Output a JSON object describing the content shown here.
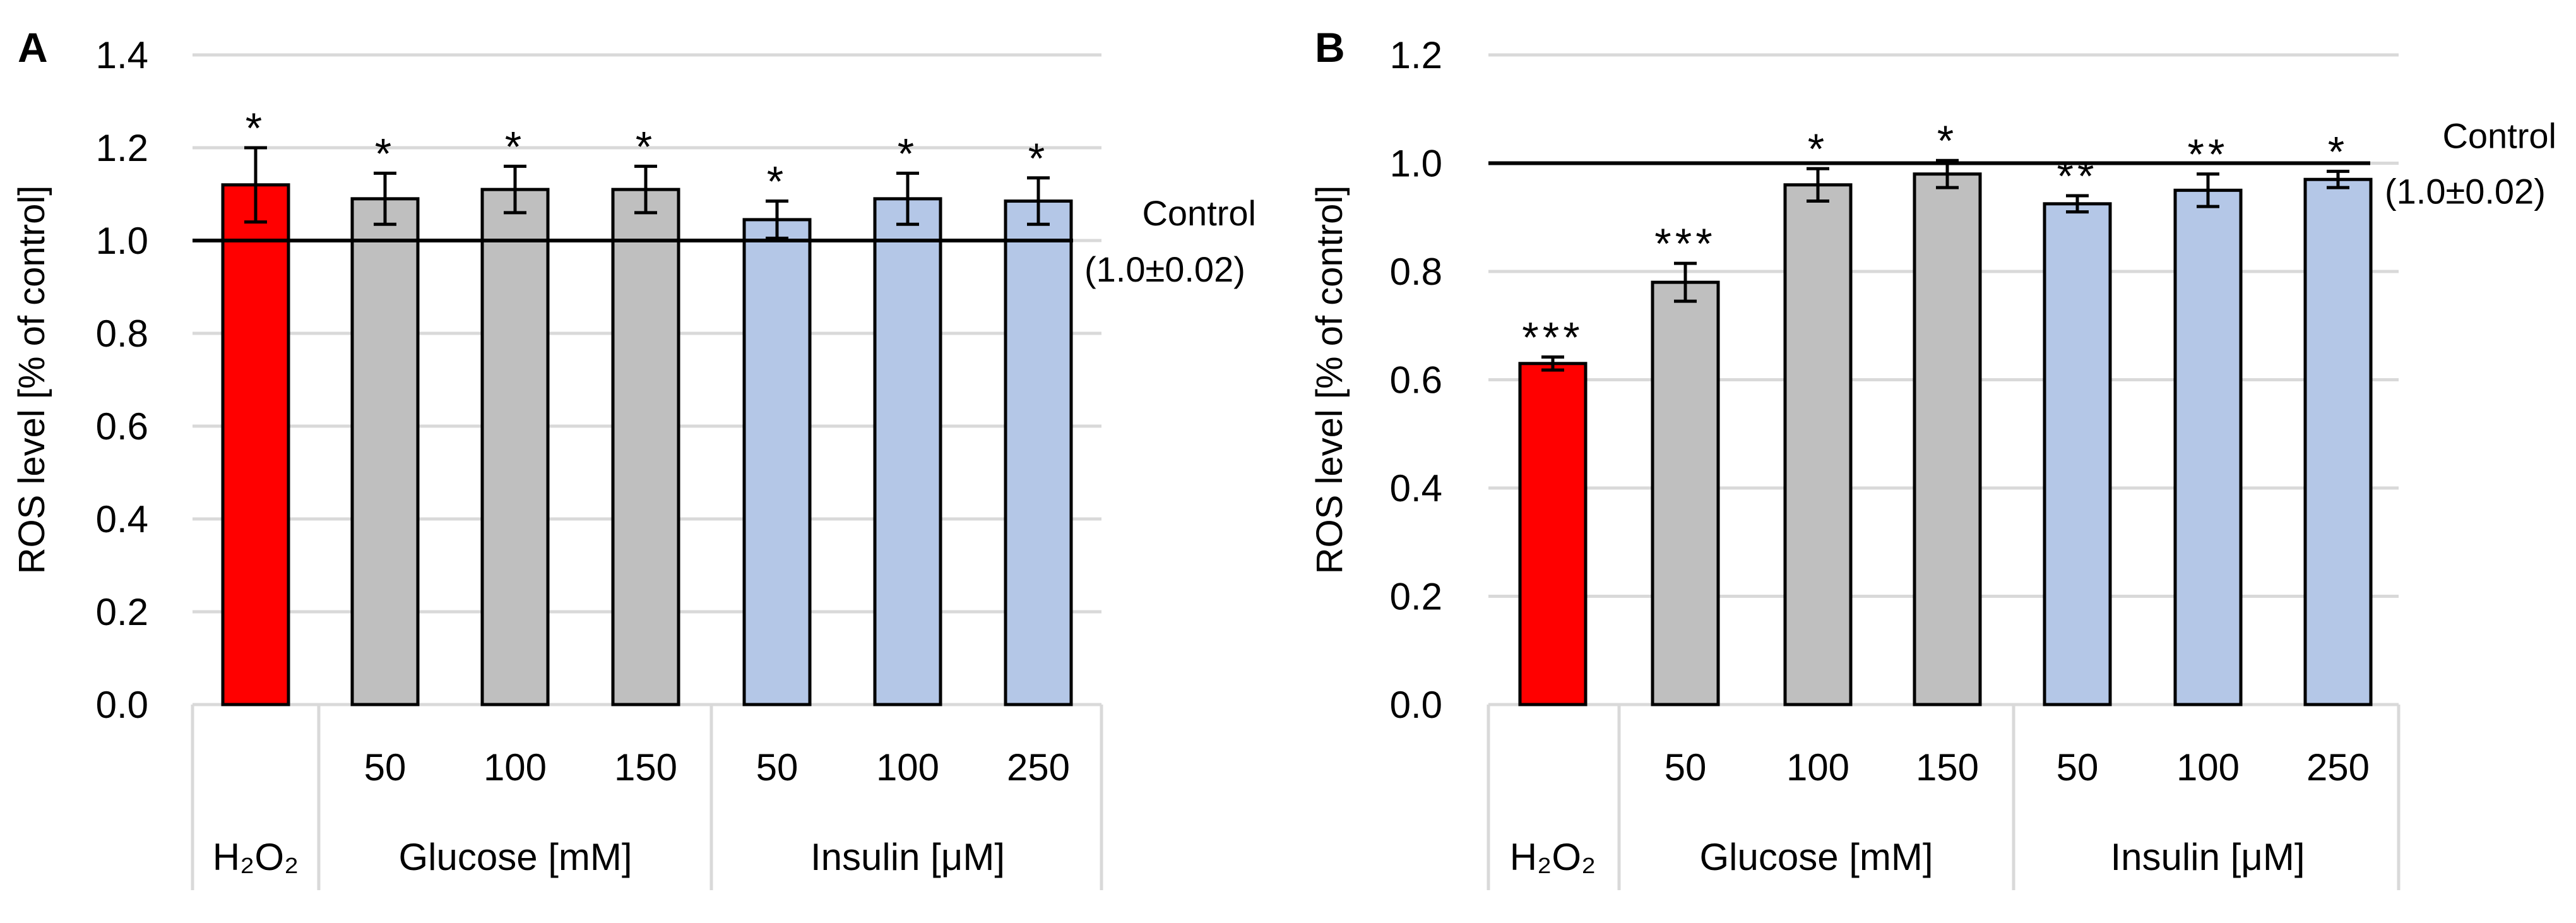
{
  "chart_data": [
    {
      "panel_label": "A",
      "type": "bar",
      "ylabel": "ROS level [% of control]",
      "ylim": [
        0,
        1.4
      ],
      "yticks": [
        "0.0",
        "0.2",
        "0.4",
        "0.6",
        "0.8",
        "1.0",
        "1.2",
        "1.4"
      ],
      "grid": true,
      "groups": [
        {
          "name": "H₂O₂",
          "categories": [
            ""
          ],
          "values": [
            1.12
          ],
          "errors": [
            0.08
          ],
          "significance": [
            "*"
          ],
          "color": "#ff0000"
        },
        {
          "name": "Glucose [mM]",
          "categories": [
            "50",
            "100",
            "150"
          ],
          "values": [
            1.09,
            1.11,
            1.11
          ],
          "errors": [
            0.055,
            0.05,
            0.05
          ],
          "significance": [
            "*",
            "*",
            "*"
          ],
          "color": "#bfbfbf"
        },
        {
          "name": "Insulin [μM]",
          "categories": [
            "50",
            "100",
            "250"
          ],
          "values": [
            1.045,
            1.09,
            1.085
          ],
          "errors": [
            0.04,
            0.055,
            0.05
          ],
          "significance": [
            "*",
            "*",
            "*"
          ],
          "color": "#b4c7e7"
        }
      ],
      "control": {
        "value": 1.0,
        "label": "Control",
        "sublabel": "(1.0±0.02)"
      }
    },
    {
      "panel_label": "B",
      "type": "bar",
      "ylabel": "ROS level [% of control]",
      "ylim": [
        0,
        1.2
      ],
      "yticks": [
        "0.0",
        "0.2",
        "0.4",
        "0.6",
        "0.8",
        "1.0",
        "1.2"
      ],
      "grid": true,
      "groups": [
        {
          "name": "H₂O₂",
          "categories": [
            ""
          ],
          "values": [
            0.63
          ],
          "errors": [
            0.012
          ],
          "significance": [
            "***"
          ],
          "color": "#ff0000"
        },
        {
          "name": "Glucose [mM]",
          "categories": [
            "50",
            "100",
            "150"
          ],
          "values": [
            0.78,
            0.96,
            0.98
          ],
          "errors": [
            0.035,
            0.03,
            0.025
          ],
          "significance": [
            "***",
            "*",
            "*"
          ],
          "color": "#bfbfbf"
        },
        {
          "name": "Insulin [μM]",
          "categories": [
            "50",
            "100",
            "250"
          ],
          "values": [
            0.925,
            0.95,
            0.97
          ],
          "errors": [
            0.015,
            0.03,
            0.015
          ],
          "significance": [
            "**",
            "**",
            "*"
          ],
          "color": "#b4c7e7"
        }
      ],
      "control": {
        "value": 1.0,
        "label": "Control",
        "sublabel": "(1.0±0.02)"
      }
    }
  ]
}
